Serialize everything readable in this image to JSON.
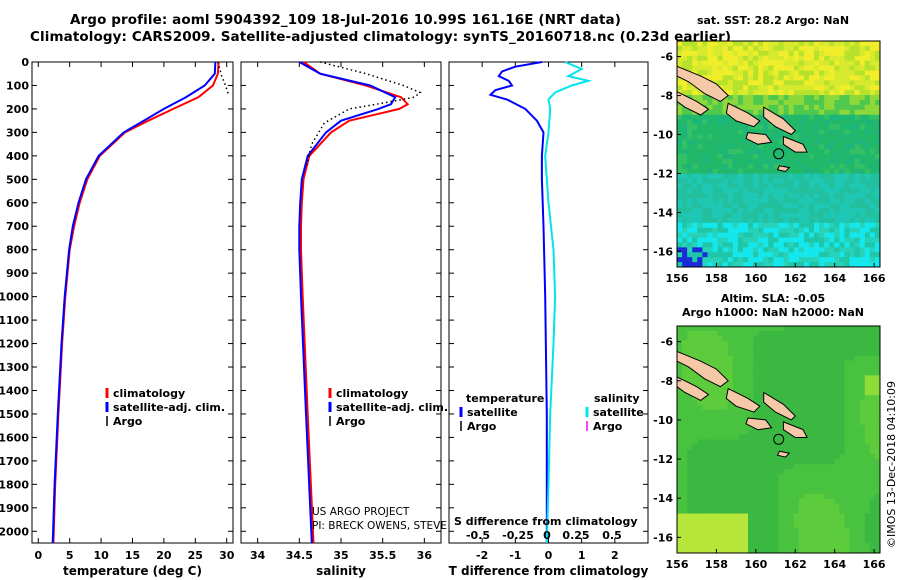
{
  "header": {
    "title_line1": "Argo profile: aoml 5904392_109 18-Jul-2016 10.99S 161.16E (NRT data)",
    "title_line2": "Climatology: CARS2009. Satellite-adjusted climatology: synTS_20160718.nc (0.23d earlier)"
  },
  "colors": {
    "climatology": "#ff0000",
    "satellite": "#0000ff",
    "argo": "#000000",
    "salinity_diff": "#00e5ee",
    "argo_sal_legend": "#ff00ff"
  },
  "chart_data": [
    {
      "type": "line",
      "name": "temperature_profile",
      "xlabel": "temperature (deg C)",
      "xlim": [
        -1,
        31
      ],
      "xticks": [
        0,
        5,
        10,
        15,
        20,
        25,
        30
      ],
      "ylim": [
        2050,
        0
      ],
      "yticks": [
        0,
        100,
        200,
        300,
        400,
        500,
        600,
        700,
        800,
        900,
        1000,
        1100,
        1200,
        1300,
        1400,
        1500,
        1600,
        1700,
        1800,
        1900,
        2000
      ],
      "legend": [
        "climatology",
        "satellite-adj. clim.",
        "Argo"
      ],
      "series": [
        {
          "name": "climatology",
          "color": "#ff0000",
          "style": "solid",
          "depth": [
            0,
            50,
            100,
            150,
            200,
            250,
            300,
            400,
            500,
            600,
            700,
            800,
            1000,
            1200,
            1500,
            1800,
            2050
          ],
          "values": [
            28.7,
            28.6,
            27.8,
            25.5,
            21.5,
            17.5,
            13.8,
            9.8,
            7.8,
            6.6,
            5.7,
            5.0,
            4.3,
            3.8,
            3.2,
            2.7,
            2.4
          ]
        },
        {
          "name": "satellite-adj. clim.",
          "color": "#0000ff",
          "style": "solid",
          "depth": [
            0,
            50,
            100,
            150,
            200,
            250,
            300,
            400,
            500,
            600,
            700,
            800,
            1000,
            1200,
            1500,
            1800,
            2050
          ],
          "values": [
            28.2,
            28.1,
            26.5,
            23.5,
            20.0,
            16.8,
            13.6,
            9.6,
            7.6,
            6.4,
            5.5,
            4.9,
            4.2,
            3.7,
            3.1,
            2.6,
            2.3
          ]
        },
        {
          "name": "Argo",
          "color": "#000000",
          "style": "dotted",
          "depth": [
            0,
            20,
            60,
            100,
            140
          ],
          "values": [
            28.6,
            28.8,
            29.2,
            29.8,
            30.3
          ]
        }
      ]
    },
    {
      "type": "line",
      "name": "salinity_profile",
      "xlabel": "salinity",
      "xlim": [
        33.8,
        36.2
      ],
      "xticks": [
        34,
        34.5,
        35,
        35.5,
        36
      ],
      "ylim": [
        2050,
        0
      ],
      "legend": [
        "climatology",
        "satellite-adj. clim.",
        "Argo"
      ],
      "annotations": [
        "US ARGO PROJECT",
        "PI: BRECK OWENS, STEVE JAYNE, P.E. ROBBINS"
      ],
      "series": [
        {
          "name": "climatology",
          "color": "#ff0000",
          "style": "solid",
          "depth": [
            0,
            50,
            100,
            150,
            180,
            200,
            250,
            300,
            400,
            500,
            600,
            700,
            800,
            1000,
            1500,
            2050
          ],
          "values": [
            34.55,
            34.75,
            35.3,
            35.72,
            35.8,
            35.7,
            35.1,
            34.88,
            34.62,
            34.55,
            34.53,
            34.52,
            34.52,
            34.54,
            34.6,
            34.67
          ]
        },
        {
          "name": "satellite-adj. clim.",
          "color": "#0000ff",
          "style": "solid",
          "depth": [
            0,
            50,
            100,
            150,
            180,
            200,
            250,
            300,
            400,
            500,
            600,
            700,
            800,
            1000,
            1500,
            2050
          ],
          "values": [
            34.5,
            34.75,
            35.35,
            35.65,
            35.6,
            35.45,
            35.0,
            34.82,
            34.6,
            34.53,
            34.51,
            34.5,
            34.5,
            34.52,
            34.58,
            34.65
          ]
        },
        {
          "name": "Argo",
          "color": "#000000",
          "style": "dotted",
          "depth": [
            0,
            50,
            100,
            130,
            150,
            175,
            200,
            260,
            350,
            450
          ],
          "values": [
            34.75,
            35.3,
            35.75,
            35.95,
            35.88,
            35.5,
            35.1,
            34.8,
            34.65,
            34.58
          ]
        }
      ]
    },
    {
      "type": "line",
      "name": "difference_profile",
      "xlabel": "T difference from climatology",
      "xlabel_top": "S difference from climatology",
      "xlim": [
        -3,
        3
      ],
      "xticks": [
        -2,
        -1,
        0,
        1,
        2
      ],
      "top_tick_labels": [
        "-0.5",
        "-0.25",
        "0",
        "0.25",
        "0.5"
      ],
      "ylim": [
        2050,
        0
      ],
      "legend_left_title": "temperature",
      "legend_right_title": "salinity",
      "legend_left": [
        "satellite",
        "Argo"
      ],
      "legend_right": [
        "satellite",
        "Argo"
      ],
      "series": [
        {
          "name": "T satellite",
          "color": "#0000ff",
          "depth": [
            0,
            20,
            40,
            60,
            80,
            100,
            120,
            140,
            160,
            200,
            250,
            300,
            400,
            500,
            700,
            1000,
            1500,
            2050
          ],
          "values": [
            -0.2,
            -1.0,
            -1.4,
            -1.5,
            -1.2,
            -1.1,
            -1.6,
            -1.75,
            -1.25,
            -0.7,
            -0.35,
            -0.15,
            -0.2,
            -0.2,
            -0.15,
            -0.1,
            -0.05,
            -0.05
          ]
        },
        {
          "name": "S satellite",
          "color": "#00e5ee",
          "depth": [
            0,
            30,
            60,
            80,
            100,
            130,
            160,
            200,
            300,
            400,
            600,
            800,
            1000,
            1200,
            1500,
            1800,
            2050
          ],
          "values": [
            0.5,
            1.0,
            0.6,
            1.2,
            0.7,
            0.2,
            0.0,
            0.05,
            0.0,
            -0.1,
            0.0,
            0.15,
            0.2,
            0.15,
            0.05,
            0.0,
            -0.05
          ]
        }
      ]
    },
    {
      "type": "heatmap",
      "name": "sst_map",
      "title": "sat. SST: 28.2 Argo: NaN",
      "xticks": [
        156,
        158,
        160,
        162,
        164,
        166
      ],
      "yticks": [
        -6,
        -8,
        -10,
        -12,
        -14,
        -16
      ],
      "xlim": [
        156,
        166.3
      ],
      "ylim": [
        -16.8,
        -5.2
      ],
      "argo_position": [
        161.16,
        -10.99
      ]
    },
    {
      "type": "heatmap",
      "name": "sla_map",
      "title_line1": "Altim. SLA: -0.05",
      "title_line2": "Argo h1000: NaN h2000: NaN",
      "xticks": [
        156,
        158,
        160,
        162,
        164,
        166
      ],
      "yticks": [
        -6,
        -8,
        -10,
        -12,
        -14,
        -16
      ],
      "xlim": [
        156,
        166.3
      ],
      "ylim": [
        -16.8,
        -5.2
      ],
      "argo_position": [
        161.16,
        -10.99
      ]
    }
  ],
  "footer": {
    "watermark": "©IMOS 13-Dec-2018 04:10:09"
  }
}
